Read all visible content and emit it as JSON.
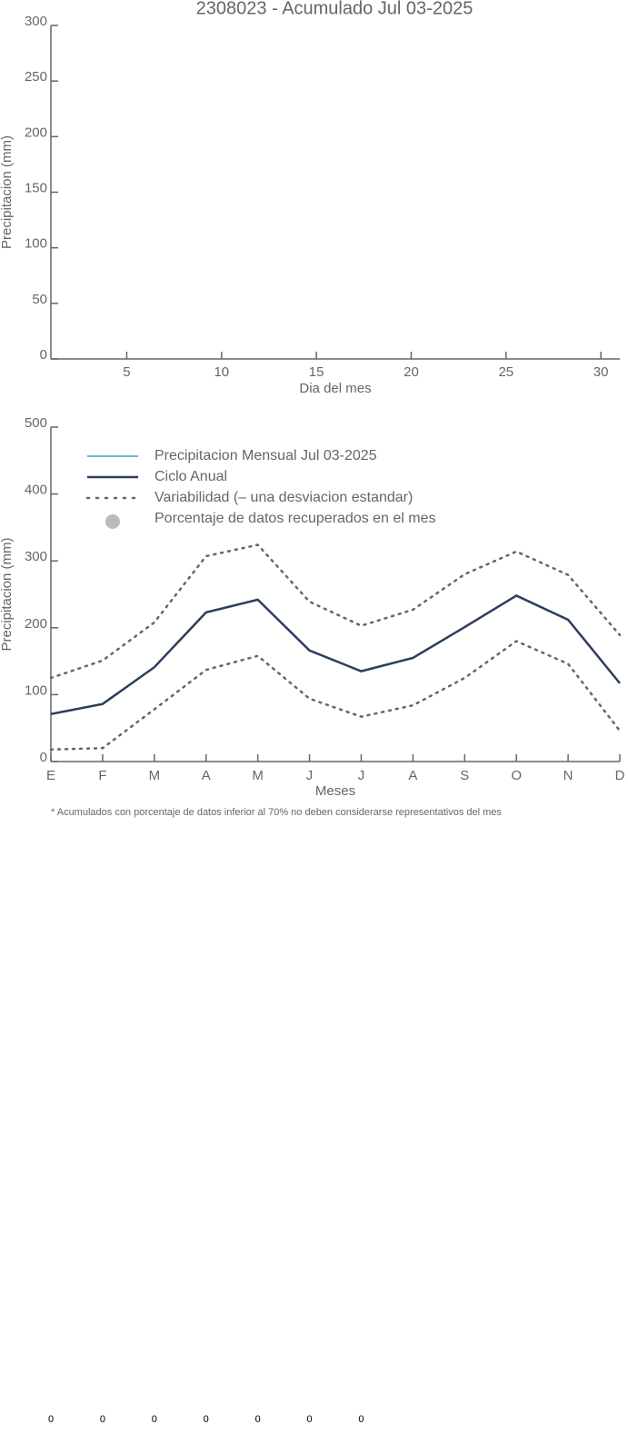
{
  "chart_data": [
    {
      "type": "line",
      "title": "2308023 - Acumulado Jul 03-2025",
      "xlabel": "Dia del mes",
      "ylabel": "Precipitacion (mm)",
      "x": [],
      "series": [],
      "xlim": [
        1,
        31
      ],
      "xticks": [
        5,
        10,
        15,
        20,
        25,
        30
      ],
      "ylim": [
        0,
        300
      ],
      "yticks": [
        0,
        50,
        100,
        150,
        200,
        250,
        300
      ]
    },
    {
      "type": "line",
      "xlabel": "Meses",
      "ylabel": "Precipitacion (mm)",
      "categories": [
        "E",
        "F",
        "M",
        "A",
        "M",
        "J",
        "J",
        "A",
        "S",
        "O",
        "N",
        "D"
      ],
      "ylim": [
        0,
        500
      ],
      "yticks": [
        0,
        100,
        200,
        300,
        400,
        500
      ],
      "series": [
        {
          "name": "Precipitacion Mensual Jul 03-2025",
          "color": "#4bb5c8",
          "values": [
            null,
            null,
            null,
            null,
            null,
            null,
            null,
            null,
            null,
            null,
            null,
            null
          ]
        },
        {
          "name": "Ciclo Anual",
          "color": "#2c3e5c",
          "values": [
            71,
            86,
            141,
            223,
            242,
            166,
            135,
            155,
            201,
            248,
            212,
            117
          ]
        },
        {
          "name": "Variabilidad (– una desviacion estandar)",
          "color": "#666666",
          "dotted": true,
          "upper": [
            125,
            151,
            208,
            307,
            324,
            239,
            203,
            227,
            280,
            314,
            279,
            189
          ],
          "lower": [
            18,
            20,
            78,
            137,
            158,
            94,
            67,
            84,
            125,
            180,
            146,
            46
          ]
        }
      ],
      "percent_label": "Porcentaje de datos recuperados en el mes",
      "percent_color": "#bbbbbb",
      "percentages": [
        0,
        0,
        0,
        0,
        0,
        0,
        0
      ],
      "note": "* Acumulados con porcentaje de datos inferior al 70% no deben considerarse representativos del mes"
    }
  ]
}
